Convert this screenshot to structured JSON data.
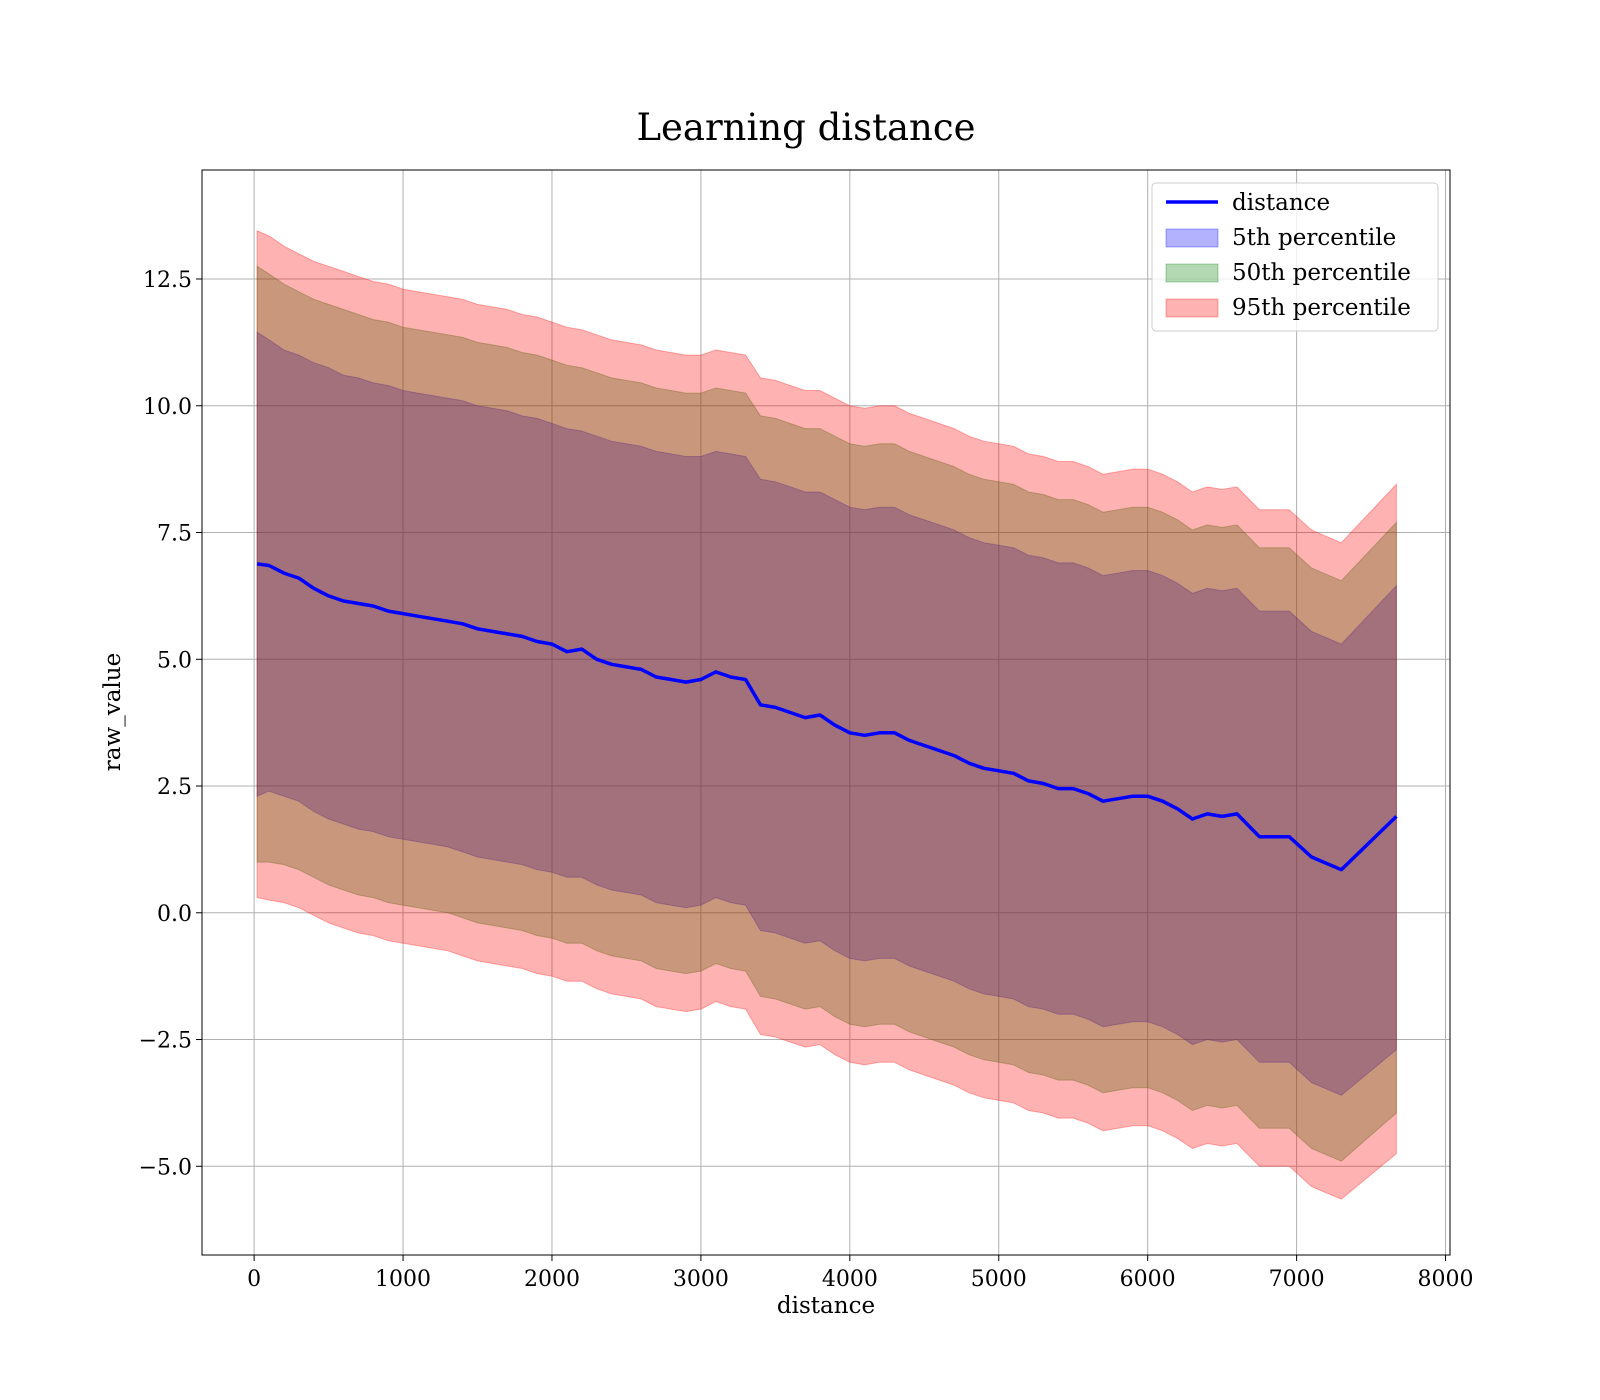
{
  "chart_data": {
    "type": "area",
    "title": "Learning distance",
    "xlabel": "distance",
    "ylabel": "raw_value",
    "xlim": [
      -350,
      8030
    ],
    "ylim": [
      -6.75,
      14.65
    ],
    "xticks": [
      0,
      1000,
      2000,
      3000,
      4000,
      5000,
      6000,
      7000,
      8000
    ],
    "xtick_labels": [
      "0",
      "1000",
      "2000",
      "3000",
      "4000",
      "5000",
      "6000",
      "7000",
      "8000"
    ],
    "yticks": [
      -5.0,
      -2.5,
      0.0,
      2.5,
      5.0,
      7.5,
      10.0,
      12.5
    ],
    "ytick_labels": [
      "−5.0",
      "−2.5",
      "0.0",
      "2.5",
      "5.0",
      "7.5",
      "10.0",
      "12.5"
    ],
    "grid": true,
    "legend_position": "top-right",
    "x": [
      20,
      100,
      200,
      300,
      400,
      500,
      600,
      700,
      800,
      900,
      1000,
      1100,
      1200,
      1300,
      1400,
      1500,
      1600,
      1700,
      1800,
      1900,
      2000,
      2100,
      2200,
      2300,
      2400,
      2500,
      2600,
      2700,
      2800,
      2900,
      3000,
      3100,
      3200,
      3300,
      3400,
      3500,
      3600,
      3700,
      3800,
      3900,
      4000,
      4100,
      4200,
      4300,
      4400,
      4500,
      4600,
      4700,
      4800,
      4900,
      5000,
      5100,
      5200,
      5300,
      5400,
      5500,
      5600,
      5700,
      5800,
      5900,
      6000,
      6100,
      6200,
      6300,
      6400,
      6500,
      6600,
      6750,
      6950,
      7100,
      7300,
      7670
    ],
    "series": [
      {
        "name": "distance",
        "kind": "line",
        "color": "#0000ff",
        "values": [
          6.88,
          6.85,
          6.7,
          6.6,
          6.4,
          6.25,
          6.15,
          6.1,
          6.05,
          5.95,
          5.9,
          5.85,
          5.8,
          5.75,
          5.7,
          5.6,
          5.55,
          5.5,
          5.45,
          5.35,
          5.3,
          5.15,
          5.2,
          5.0,
          4.9,
          4.85,
          4.8,
          4.65,
          4.6,
          4.55,
          4.6,
          4.75,
          4.65,
          4.6,
          4.1,
          4.05,
          3.95,
          3.85,
          3.9,
          3.7,
          3.55,
          3.5,
          3.55,
          3.55,
          3.4,
          3.3,
          3.2,
          3.1,
          2.95,
          2.85,
          2.8,
          2.75,
          2.6,
          2.55,
          2.45,
          2.45,
          2.35,
          2.2,
          2.25,
          2.3,
          2.3,
          2.2,
          2.05,
          1.85,
          1.95,
          1.9,
          1.95,
          1.5,
          1.5,
          1.1,
          0.85,
          1.9
        ]
      },
      {
        "name": "5th percentile",
        "kind": "band",
        "color": "#0000ff",
        "upper": [
          11.45,
          11.3,
          11.1,
          11.0,
          10.85,
          10.75,
          10.6,
          10.55,
          10.45,
          10.4,
          10.3,
          10.25,
          10.2,
          10.15,
          10.1,
          10.0,
          9.95,
          9.9,
          9.8,
          9.75,
          9.65,
          9.55,
          9.5,
          9.4,
          9.3,
          9.25,
          9.2,
          9.1,
          9.05,
          9.0,
          9.0,
          9.1,
          9.05,
          9.0,
          8.55,
          8.5,
          8.4,
          8.3,
          8.3,
          8.15,
          8.0,
          7.95,
          8.0,
          8.0,
          7.85,
          7.75,
          7.65,
          7.55,
          7.4,
          7.3,
          7.25,
          7.2,
          7.05,
          7.0,
          6.9,
          6.9,
          6.8,
          6.65,
          6.7,
          6.75,
          6.75,
          6.65,
          6.5,
          6.3,
          6.4,
          6.35,
          6.4,
          5.95,
          5.95,
          5.55,
          5.3,
          6.45
        ],
        "lower": [
          2.3,
          2.4,
          2.3,
          2.2,
          2.0,
          1.85,
          1.75,
          1.65,
          1.6,
          1.5,
          1.45,
          1.4,
          1.35,
          1.3,
          1.2,
          1.1,
          1.05,
          1.0,
          0.95,
          0.85,
          0.8,
          0.7,
          0.7,
          0.55,
          0.45,
          0.4,
          0.35,
          0.2,
          0.15,
          0.1,
          0.15,
          0.3,
          0.2,
          0.15,
          -0.35,
          -0.4,
          -0.5,
          -0.6,
          -0.55,
          -0.75,
          -0.9,
          -0.95,
          -0.9,
          -0.9,
          -1.05,
          -1.15,
          -1.25,
          -1.35,
          -1.5,
          -1.6,
          -1.65,
          -1.7,
          -1.85,
          -1.9,
          -2.0,
          -2.0,
          -2.1,
          -2.25,
          -2.2,
          -2.15,
          -2.15,
          -2.25,
          -2.4,
          -2.6,
          -2.5,
          -2.55,
          -2.5,
          -2.95,
          -2.95,
          -3.35,
          -3.6,
          -2.7
        ]
      },
      {
        "name": "50th percentile",
        "kind": "band",
        "color": "#008000",
        "upper": [
          12.75,
          12.6,
          12.4,
          12.25,
          12.1,
          12.0,
          11.9,
          11.8,
          11.7,
          11.65,
          11.55,
          11.5,
          11.45,
          11.4,
          11.35,
          11.25,
          11.2,
          11.15,
          11.05,
          11.0,
          10.9,
          10.8,
          10.75,
          10.65,
          10.55,
          10.5,
          10.45,
          10.35,
          10.3,
          10.25,
          10.25,
          10.35,
          10.3,
          10.25,
          9.8,
          9.75,
          9.65,
          9.55,
          9.55,
          9.4,
          9.25,
          9.2,
          9.25,
          9.25,
          9.1,
          9.0,
          8.9,
          8.8,
          8.65,
          8.55,
          8.5,
          8.45,
          8.3,
          8.25,
          8.15,
          8.15,
          8.05,
          7.9,
          7.95,
          8.0,
          8.0,
          7.9,
          7.75,
          7.55,
          7.65,
          7.6,
          7.65,
          7.2,
          7.2,
          6.8,
          6.55,
          7.7
        ],
        "lower": [
          1.0,
          1.0,
          0.95,
          0.85,
          0.7,
          0.55,
          0.45,
          0.35,
          0.3,
          0.2,
          0.15,
          0.1,
          0.05,
          0.0,
          -0.1,
          -0.2,
          -0.25,
          -0.3,
          -0.35,
          -0.45,
          -0.5,
          -0.6,
          -0.6,
          -0.75,
          -0.85,
          -0.9,
          -0.95,
          -1.1,
          -1.15,
          -1.2,
          -1.15,
          -1.0,
          -1.1,
          -1.15,
          -1.65,
          -1.7,
          -1.8,
          -1.9,
          -1.85,
          -2.05,
          -2.2,
          -2.25,
          -2.2,
          -2.2,
          -2.35,
          -2.45,
          -2.55,
          -2.65,
          -2.8,
          -2.9,
          -2.95,
          -3.0,
          -3.15,
          -3.2,
          -3.3,
          -3.3,
          -3.4,
          -3.55,
          -3.5,
          -3.45,
          -3.45,
          -3.55,
          -3.7,
          -3.9,
          -3.8,
          -3.85,
          -3.8,
          -4.25,
          -4.25,
          -4.65,
          -4.9,
          -3.95
        ]
      },
      {
        "name": "95th percentile",
        "kind": "band",
        "color": "#ff0000",
        "upper": [
          13.45,
          13.35,
          13.15,
          13.0,
          12.85,
          12.75,
          12.65,
          12.55,
          12.45,
          12.4,
          12.3,
          12.25,
          12.2,
          12.15,
          12.1,
          12.0,
          11.95,
          11.9,
          11.8,
          11.75,
          11.65,
          11.55,
          11.5,
          11.4,
          11.3,
          11.25,
          11.2,
          11.1,
          11.05,
          11.0,
          11.0,
          11.1,
          11.05,
          11.0,
          10.55,
          10.5,
          10.4,
          10.3,
          10.3,
          10.15,
          10.0,
          9.95,
          10.0,
          10.0,
          9.85,
          9.75,
          9.65,
          9.55,
          9.4,
          9.3,
          9.25,
          9.2,
          9.05,
          9.0,
          8.9,
          8.9,
          8.8,
          8.65,
          8.7,
          8.75,
          8.75,
          8.65,
          8.5,
          8.3,
          8.4,
          8.35,
          8.4,
          7.95,
          7.95,
          7.55,
          7.3,
          8.45
        ],
        "lower": [
          0.3,
          0.25,
          0.2,
          0.1,
          -0.05,
          -0.2,
          -0.3,
          -0.4,
          -0.45,
          -0.55,
          -0.6,
          -0.65,
          -0.7,
          -0.75,
          -0.85,
          -0.95,
          -1.0,
          -1.05,
          -1.1,
          -1.2,
          -1.25,
          -1.35,
          -1.35,
          -1.5,
          -1.6,
          -1.65,
          -1.7,
          -1.85,
          -1.9,
          -1.95,
          -1.9,
          -1.75,
          -1.85,
          -1.9,
          -2.4,
          -2.45,
          -2.55,
          -2.65,
          -2.6,
          -2.8,
          -2.95,
          -3.0,
          -2.95,
          -2.95,
          -3.1,
          -3.2,
          -3.3,
          -3.4,
          -3.55,
          -3.65,
          -3.7,
          -3.75,
          -3.9,
          -3.95,
          -4.05,
          -4.05,
          -4.15,
          -4.3,
          -4.25,
          -4.2,
          -4.2,
          -4.3,
          -4.45,
          -4.65,
          -4.55,
          -4.6,
          -4.55,
          -5.0,
          -5.0,
          -5.4,
          -5.65,
          -4.75
        ]
      }
    ]
  }
}
